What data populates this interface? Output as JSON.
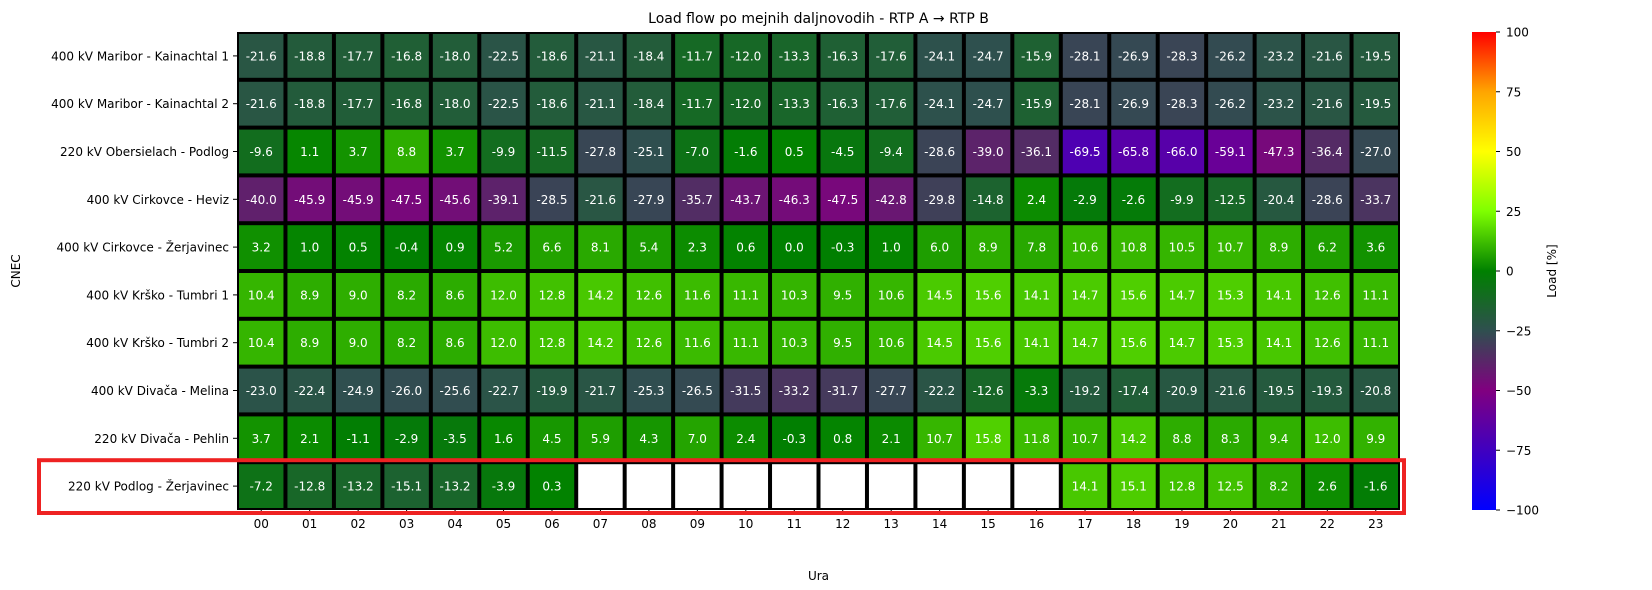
{
  "chart_data": {
    "type": "heatmap",
    "title": "Load flow po mejnih daljnovodih - RTP A → RTP B",
    "xlabel": "Ura",
    "ylabel": "CNEC",
    "x": [
      "00",
      "01",
      "02",
      "03",
      "04",
      "05",
      "06",
      "07",
      "08",
      "09",
      "10",
      "11",
      "12",
      "13",
      "14",
      "15",
      "16",
      "17",
      "18",
      "19",
      "20",
      "21",
      "22",
      "23"
    ],
    "y": [
      "400 kV Maribor - Kainachtal 1",
      "400 kV Maribor - Kainachtal 2",
      "220 kV Obersielach - Podlog",
      "400 kV Cirkovce - Heviz",
      "400 kV Cirkovce - Žerjavinec",
      "400 kV Krško - Tumbri 1",
      "400 kV Krško - Tumbri 2",
      "400 kV Divača - Melina",
      "220 kV Divača - Pehlin",
      "220 kV Podlog - Žerjavinec"
    ],
    "values": [
      [
        -21.6,
        -18.8,
        -17.7,
        -16.8,
        -18.0,
        -22.5,
        -18.6,
        -21.1,
        -18.4,
        -11.7,
        -12.0,
        -13.3,
        -16.3,
        -17.6,
        -24.1,
        -24.7,
        -15.9,
        -28.1,
        -26.9,
        -28.3,
        -26.2,
        -23.2,
        -21.6,
        -19.5
      ],
      [
        -21.6,
        -18.8,
        -17.7,
        -16.8,
        -18.0,
        -22.5,
        -18.6,
        -21.1,
        -18.4,
        -11.7,
        -12.0,
        -13.3,
        -16.3,
        -17.6,
        -24.1,
        -24.7,
        -15.9,
        -28.1,
        -26.9,
        -28.3,
        -26.2,
        -23.2,
        -21.6,
        -19.5
      ],
      [
        -9.6,
        1.1,
        3.7,
        8.8,
        3.7,
        -9.9,
        -11.5,
        -27.8,
        -25.1,
        -7.0,
        -1.6,
        0.5,
        -4.5,
        -9.4,
        -28.6,
        -39.0,
        -36.1,
        -69.5,
        -65.8,
        -66.0,
        -59.1,
        -47.3,
        -36.4,
        -27.0
      ],
      [
        -40.0,
        -45.9,
        -45.9,
        -47.5,
        -45.6,
        -39.1,
        -28.5,
        -21.6,
        -27.9,
        -35.7,
        -43.7,
        -46.3,
        -47.5,
        -42.8,
        -29.8,
        -14.8,
        2.4,
        -2.9,
        -2.6,
        -9.9,
        -12.5,
        -20.4,
        -28.6,
        -33.7
      ],
      [
        3.2,
        1.0,
        0.5,
        -0.4,
        0.9,
        5.2,
        6.6,
        8.1,
        5.4,
        2.3,
        0.6,
        0.0,
        -0.3,
        1.0,
        6.0,
        8.9,
        7.8,
        10.6,
        10.8,
        10.5,
        10.7,
        8.9,
        6.2,
        3.6
      ],
      [
        10.4,
        8.9,
        9.0,
        8.2,
        8.6,
        12.0,
        12.8,
        14.2,
        12.6,
        11.6,
        11.1,
        10.3,
        9.5,
        10.6,
        14.5,
        15.6,
        14.1,
        14.7,
        15.6,
        14.7,
        15.3,
        14.1,
        12.6,
        11.1
      ],
      [
        10.4,
        8.9,
        9.0,
        8.2,
        8.6,
        12.0,
        12.8,
        14.2,
        12.6,
        11.6,
        11.1,
        10.3,
        9.5,
        10.6,
        14.5,
        15.6,
        14.1,
        14.7,
        15.6,
        14.7,
        15.3,
        14.1,
        12.6,
        11.1
      ],
      [
        -23.0,
        -22.4,
        -24.9,
        -26.0,
        -25.6,
        -22.7,
        -19.9,
        -21.7,
        -25.3,
        -26.5,
        -31.5,
        -33.2,
        -31.7,
        -27.7,
        -22.2,
        -12.6,
        -3.3,
        -19.2,
        -17.4,
        -20.9,
        -21.6,
        -19.5,
        -19.3,
        -20.8
      ],
      [
        3.7,
        2.1,
        -1.1,
        -2.9,
        -3.5,
        1.6,
        4.5,
        5.9,
        4.3,
        7.0,
        2.4,
        -0.3,
        0.8,
        2.1,
        10.7,
        15.8,
        11.8,
        10.7,
        14.2,
        8.8,
        8.3,
        9.4,
        12.0,
        9.9
      ],
      [
        -7.2,
        -12.8,
        -13.2,
        -15.1,
        -13.2,
        -3.9,
        0.3,
        null,
        null,
        null,
        null,
        null,
        null,
        null,
        null,
        null,
        null,
        14.1,
        15.1,
        12.8,
        12.5,
        8.2,
        2.6,
        -1.6
      ]
    ],
    "colorbar": {
      "label": "Load [%]",
      "range": [
        -100,
        100
      ],
      "ticks": [
        100,
        75,
        50,
        25,
        0,
        -25,
        -50,
        -75,
        -100
      ],
      "tick_labels": [
        "100",
        "75",
        "50",
        "25",
        "0",
        "−25",
        "−50",
        "−75",
        "−100"
      ],
      "stops": [
        {
          "v": -100,
          "color": "#0000ff"
        },
        {
          "v": -50,
          "color": "#800080"
        },
        {
          "v": -25,
          "color": "#2f4f4f"
        },
        {
          "v": 0,
          "color": "#008000"
        },
        {
          "v": 25,
          "color": "#7fff00"
        },
        {
          "v": 50,
          "color": "#ffff00"
        },
        {
          "v": 75,
          "color": "#ffa500"
        },
        {
          "v": 100,
          "color": "#ff0000"
        }
      ]
    },
    "highlight": {
      "row": 9,
      "color": "#ee2222"
    },
    "missing_color": "#ffffff",
    "cell_border_color": "#000000"
  }
}
